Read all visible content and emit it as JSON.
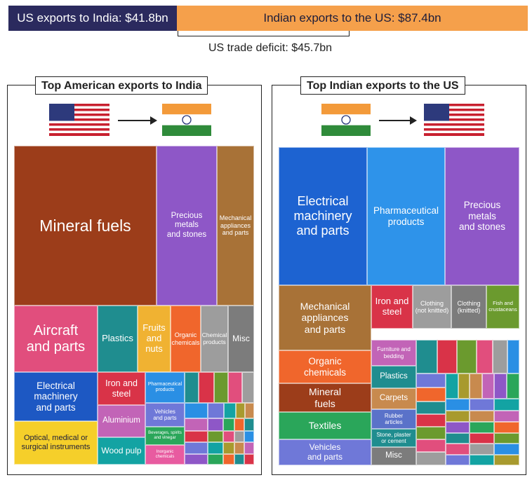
{
  "header": {
    "us_exports": "US exports to India: $41.8bn",
    "india_exports": "Indian exports to the US: $87.4bn",
    "deficit": "US trade deficit: $45.7bn"
  },
  "chart_data": [
    {
      "type": "treemap",
      "title": "Top American exports to India",
      "categories": [
        {
          "label": "Mineral fuels",
          "color": "#9c3d1a"
        },
        {
          "label": "Precious\nmetals\nand stones",
          "color": "#8e57c7"
        },
        {
          "label": "Mechanical\nappliances\nand parts",
          "color": "#a87237"
        },
        {
          "label": "Aircraft\nand parts",
          "color": "#e14e7d"
        },
        {
          "label": "Plastics",
          "color": "#1f8d8f"
        },
        {
          "label": "Fruits\nand\nnuts",
          "color": "#f0b232"
        },
        {
          "label": "Organic\nchemicals",
          "color": "#f0662c"
        },
        {
          "label": "Chemical\nproducts",
          "color": "#9d9d9d"
        },
        {
          "label": "Misc",
          "color": "#7c7c7c"
        },
        {
          "label": "Electrical\nmachinery\nand parts",
          "color": "#1d58c3"
        },
        {
          "label": "Optical, medical or\nsurgical instruments",
          "color": "#f5cf2a"
        },
        {
          "label": "Iron and\nsteel",
          "color": "#d93348"
        },
        {
          "label": "Aluminium",
          "color": "#c264b7"
        },
        {
          "label": "Wood pulp",
          "color": "#13a3a3"
        },
        {
          "label": "Pharmaceutical\nproducts",
          "color": "#2a8fe4"
        },
        {
          "label": "Vehicles\nand parts",
          "color": "#6f78d8"
        },
        {
          "label": "Beverages, spirits\nand vinegar",
          "color": "#2aa65a"
        },
        {
          "label": "Inorganic\nchemicals",
          "color": "#e85ba0"
        }
      ]
    },
    {
      "type": "treemap",
      "title": "Top Indian exports to the US",
      "categories": [
        {
          "label": "Electrical\nmachinery\nand parts",
          "color": "#1d63d1"
        },
        {
          "label": "Pharmaceutical\nproducts",
          "color": "#2e93ea"
        },
        {
          "label": "Precious\nmetals\nand stones",
          "color": "#8e57c7"
        },
        {
          "label": "Mechanical\nappliances\nand parts",
          "color": "#a87237"
        },
        {
          "label": "Iron and\nsteel",
          "color": "#d93348"
        },
        {
          "label": "Clothing\n(not knitted)",
          "color": "#9d9d9d"
        },
        {
          "label": "Clothing\n(knitted)",
          "color": "#7c7c7c"
        },
        {
          "label": "Fish and\ncrustaceans",
          "color": "#6b9a2e"
        },
        {
          "label": "Organic\nchemicals",
          "color": "#f0662c"
        },
        {
          "label": "Mineral\nfuels",
          "color": "#9c3d1a"
        },
        {
          "label": "Textiles",
          "color": "#2aa65a"
        },
        {
          "label": "Vehicles\nand parts",
          "color": "#6f78d8"
        },
        {
          "label": "Furniture and\nbedding",
          "color": "#c264b7"
        },
        {
          "label": "Plastics",
          "color": "#1f8d8f"
        },
        {
          "label": "Carpets",
          "color": "#c88a4e"
        },
        {
          "label": "Rubber\narticles",
          "color": "#5a72c9"
        },
        {
          "label": "Stone, plaster\nor cement",
          "color": "#1f8d8f"
        },
        {
          "label": "Misc",
          "color": "#7c7c7c"
        }
      ]
    }
  ],
  "small_palette": [
    "#2a8fe4",
    "#a89a2e",
    "#8e57c7",
    "#1f8d8f",
    "#e14e7d",
    "#6f78d8",
    "#c88a4e",
    "#2aa65a",
    "#d93348",
    "#9d9d9d",
    "#13a3a3",
    "#c264b7",
    "#f0662c",
    "#6b9a2e"
  ]
}
